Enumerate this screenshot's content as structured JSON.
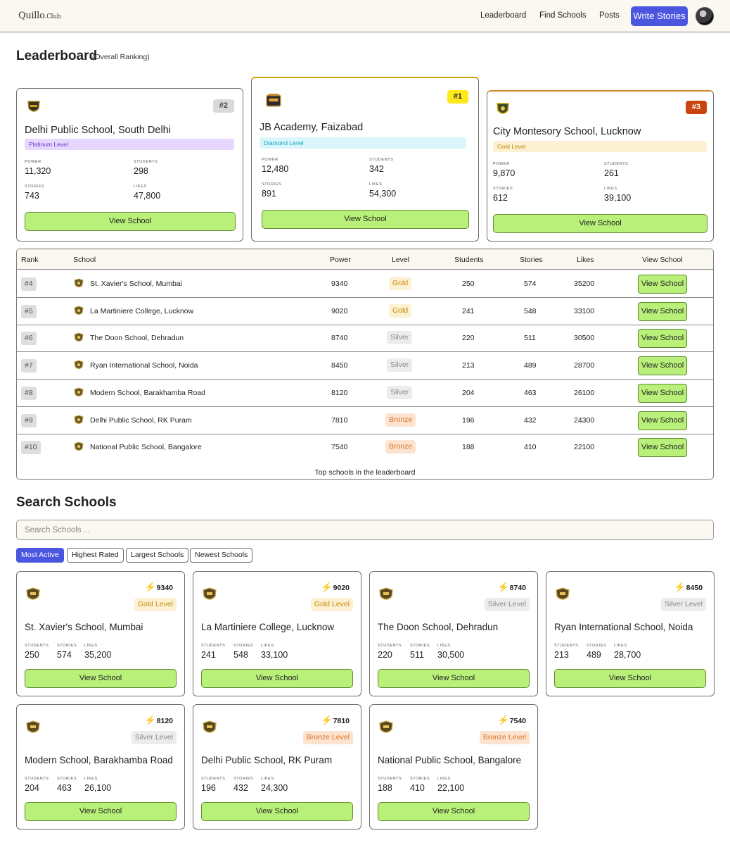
{
  "header": {
    "logo_main": "Quillo",
    "logo_club": ".Club",
    "nav": [
      "Leaderboard",
      "Find Schools",
      "Posts"
    ],
    "cta": "Write Stories"
  },
  "leaderboard": {
    "title": "Leaderboard",
    "subtitle": "(Overall Ranking)"
  },
  "stat_labels": {
    "power": "POWER",
    "students": "STUDENTS",
    "stories": "STORIES",
    "likes": "LIKES"
  },
  "podium": [
    {
      "rank": "#2",
      "name": "Delhi Public School, South Delhi",
      "level": "Platinum Level",
      "power": "11,320",
      "students": "298",
      "stories": "743",
      "likes": "47,800",
      "button": "View School"
    },
    {
      "rank": "#1",
      "name": "JB Academy, Faizabad",
      "level": "Diamond Level",
      "power": "12,480",
      "students": "342",
      "stories": "891",
      "likes": "54,300",
      "button": "View School"
    },
    {
      "rank": "#3",
      "name": "City Montesory School, Lucknow",
      "level": "Gold Level",
      "power": "9,870",
      "students": "261",
      "stories": "612",
      "likes": "39,100",
      "button": "View School"
    }
  ],
  "table": {
    "headers": [
      "Rank",
      "School",
      "Power",
      "Level",
      "Students",
      "Stories",
      "Likes",
      "View School"
    ],
    "rows": [
      {
        "rank": "#4",
        "school": "St. Xavier's School, Mumbai",
        "power": "9340",
        "level": "Gold",
        "students": "250",
        "stories": "574",
        "likes": "35200",
        "button": "View School"
      },
      {
        "rank": "#5",
        "school": "La Martiniere College, Lucknow",
        "power": "9020",
        "level": "Gold",
        "students": "241",
        "stories": "548",
        "likes": "33100",
        "button": "View School"
      },
      {
        "rank": "#6",
        "school": "The Doon School, Dehradun",
        "power": "8740",
        "level": "Silver",
        "students": "220",
        "stories": "511",
        "likes": "30500",
        "button": "View School"
      },
      {
        "rank": "#7",
        "school": "Ryan International School, Noida",
        "power": "8450",
        "level": "Silver",
        "students": "213",
        "stories": "489",
        "likes": "28700",
        "button": "View School"
      },
      {
        "rank": "#8",
        "school": "Modern School, Barakhamba Road",
        "power": "8120",
        "level": "Silver",
        "students": "204",
        "stories": "463",
        "likes": "26100",
        "button": "View School"
      },
      {
        "rank": "#9",
        "school": "Delhi Public School, RK Puram",
        "power": "7810",
        "level": "Bronze",
        "students": "196",
        "stories": "432",
        "likes": "24300",
        "button": "View School"
      },
      {
        "rank": "#10",
        "school": "National Public School, Bangalore",
        "power": "7540",
        "level": "Bronze",
        "students": "188",
        "stories": "410",
        "likes": "22100",
        "button": "View School"
      }
    ],
    "caption": "Top schools in the leaderboard"
  },
  "search": {
    "title": "Search Schools",
    "placeholder": "Search Schools ...",
    "filters": [
      "Most Active",
      "Highest Rated",
      "Largest Schools",
      "Newest Schools"
    ],
    "active_filter": "Most Active"
  },
  "cards": [
    {
      "name": "St. Xavier's School, Mumbai",
      "power": "9340",
      "level": "Gold Level",
      "students": "250",
      "stories": "574",
      "likes": "35,200",
      "button": "View School"
    },
    {
      "name": "La Martiniere College, Lucknow",
      "power": "9020",
      "level": "Gold Level",
      "students": "241",
      "stories": "548",
      "likes": "33,100",
      "button": "View School"
    },
    {
      "name": "The Doon School, Dehradun",
      "power": "8740",
      "level": "Silver Level",
      "students": "220",
      "stories": "511",
      "likes": "30,500",
      "button": "View School"
    },
    {
      "name": "Ryan International School, Noida",
      "power": "8450",
      "level": "Silver Level",
      "students": "213",
      "stories": "489",
      "likes": "28,700",
      "button": "View School"
    },
    {
      "name": "Modern School, Barakhamba Road",
      "power": "8120",
      "level": "Silver Level",
      "students": "204",
      "stories": "463",
      "likes": "26,100",
      "button": "View School"
    },
    {
      "name": "Delhi Public School, RK Puram",
      "power": "7810",
      "level": "Bronze Level",
      "students": "196",
      "stories": "432",
      "likes": "24,300",
      "button": "View School"
    },
    {
      "name": "National Public School, Bangalore",
      "power": "7540",
      "level": "Bronze Level",
      "students": "188",
      "stories": "410",
      "likes": "22,100",
      "button": "View School"
    }
  ],
  "colors": {
    "accent": "#4a55e0",
    "button_green": "#b8f07a",
    "gold_badge": "#ffe81a",
    "rank3_badge": "#c9450f",
    "platinum": "#e6d7ff",
    "diamond": "#d8f6fb",
    "gold": "#fdf1d3",
    "silver": "#ececec",
    "bronze": "#fde3cf"
  },
  "icons": [
    "school-crest-icon",
    "lightning-bolt-icon",
    "user-avatar"
  ]
}
